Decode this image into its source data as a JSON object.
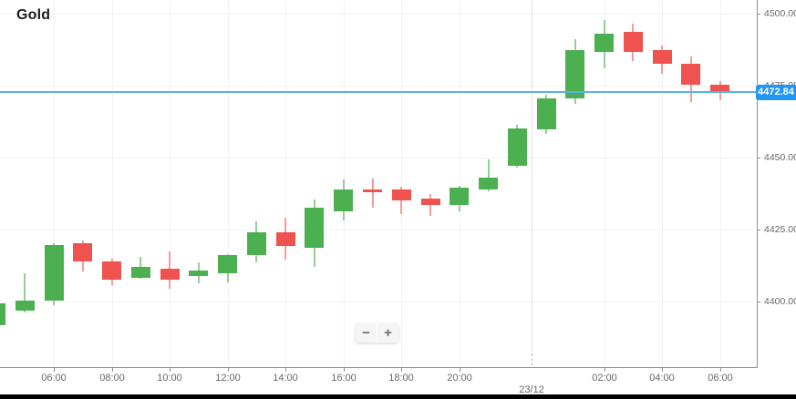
{
  "title": "Gold",
  "current_price": {
    "value": 4472.84,
    "label": "4472.84"
  },
  "zoom_controls": {
    "zoom_out_label": "−",
    "zoom_in_label": "+"
  },
  "colors": {
    "up_body": "#4caf50",
    "up_wick": "#93ce96",
    "down_body": "#ef5350",
    "down_wick": "#f59c9a",
    "current_price_line": "#55b1f1",
    "current_price_label_bg": "#2196f3",
    "grid": "#f2f2f2",
    "date_separator": "#e0e0e0",
    "axis_line": "#8f8f8f",
    "axis_text": "#676767",
    "background": "#ffffff"
  },
  "chart_data": {
    "type": "candlestick",
    "title": "Gold",
    "interval": "1h",
    "grid": true,
    "y_axis_side": "right",
    "y_range": [
      4377,
      4505
    ],
    "y_ticks": [
      {
        "value": 4500,
        "label": "4500.00"
      },
      {
        "value": 4475,
        "label": "4475.00"
      },
      {
        "value": 4450,
        "label": "4450.00"
      },
      {
        "value": 4425,
        "label": "4425.00"
      },
      {
        "value": 4400,
        "label": "4400.00"
      }
    ],
    "x_ticks": [
      {
        "candle_index": 2,
        "label": "06:00"
      },
      {
        "candle_index": 4,
        "label": "08:00"
      },
      {
        "candle_index": 6,
        "label": "10:00"
      },
      {
        "candle_index": 8,
        "label": "12:00"
      },
      {
        "candle_index": 10,
        "label": "14:00"
      },
      {
        "candle_index": 12,
        "label": "16:00"
      },
      {
        "candle_index": 14,
        "label": "18:00"
      },
      {
        "candle_index": 16,
        "label": "20:00"
      },
      {
        "candle_index": 21,
        "label": "02:00"
      },
      {
        "candle_index": 23,
        "label": "04:00"
      },
      {
        "candle_index": 25,
        "label": "06:00"
      }
    ],
    "date_separator": {
      "label": "23/12",
      "position_index": 18.5
    },
    "current_price_line": 4472.84,
    "candles": [
      {
        "time": "04:00",
        "o": 4391.9,
        "h": 4400.0,
        "l": 4391.9,
        "c": 4399.4
      },
      {
        "time": "05:00",
        "o": 4396.9,
        "h": 4409.9,
        "l": 4396.3,
        "c": 4400.4
      },
      {
        "time": "06:00",
        "o": 4400.3,
        "h": 4420.2,
        "l": 4398.7,
        "c": 4419.6
      },
      {
        "time": "07:00",
        "o": 4420.3,
        "h": 4421.2,
        "l": 4410.5,
        "c": 4413.9
      },
      {
        "time": "08:00",
        "o": 4413.9,
        "h": 4414.9,
        "l": 4405.7,
        "c": 4407.6
      },
      {
        "time": "09:00",
        "o": 4408.2,
        "h": 4415.5,
        "l": 4407.9,
        "c": 4412.0
      },
      {
        "time": "10:00",
        "o": 4411.4,
        "h": 4417.4,
        "l": 4404.5,
        "c": 4407.7
      },
      {
        "time": "11:00",
        "o": 4408.8,
        "h": 4413.5,
        "l": 4406.1,
        "c": 4410.7
      },
      {
        "time": "12:00",
        "o": 4409.8,
        "h": 4416.4,
        "l": 4406.6,
        "c": 4416.1
      },
      {
        "time": "13:00",
        "o": 4416.1,
        "h": 4427.8,
        "l": 4413.6,
        "c": 4424.0
      },
      {
        "time": "14:00",
        "o": 4424.0,
        "h": 4429.0,
        "l": 4414.5,
        "c": 4419.3
      },
      {
        "time": "15:00",
        "o": 4418.7,
        "h": 4435.4,
        "l": 4412.0,
        "c": 4432.6
      },
      {
        "time": "16:00",
        "o": 4431.4,
        "h": 4442.4,
        "l": 4428.2,
        "c": 4439.0
      },
      {
        "time": "17:00",
        "o": 4438.9,
        "h": 4442.7,
        "l": 4432.6,
        "c": 4438.0
      },
      {
        "time": "18:00",
        "o": 4439.0,
        "h": 4439.9,
        "l": 4430.4,
        "c": 4435.1
      },
      {
        "time": "19:00",
        "o": 4435.7,
        "h": 4437.2,
        "l": 4429.5,
        "c": 4433.6
      },
      {
        "time": "20:00",
        "o": 4433.5,
        "h": 4440.2,
        "l": 4431.3,
        "c": 4439.6
      },
      {
        "time": "21:00",
        "o": 4438.9,
        "h": 4449.4,
        "l": 4438.3,
        "c": 4443.1
      },
      {
        "time": "22:00",
        "o": 4447.2,
        "h": 4461.4,
        "l": 4446.5,
        "c": 4460.1
      },
      {
        "time": "00:00",
        "o": 4459.8,
        "h": 4471.8,
        "l": 4458.2,
        "c": 4470.6
      },
      {
        "time": "01:00",
        "o": 4470.6,
        "h": 4491.1,
        "l": 4468.7,
        "c": 4487.3
      },
      {
        "time": "02:00",
        "o": 4486.7,
        "h": 4497.8,
        "l": 4481.0,
        "c": 4493.0
      },
      {
        "time": "03:00",
        "o": 4493.7,
        "h": 4496.6,
        "l": 4483.6,
        "c": 4486.7
      },
      {
        "time": "04:00",
        "o": 4487.3,
        "h": 4488.9,
        "l": 4479.1,
        "c": 4482.6
      },
      {
        "time": "05:00",
        "o": 4482.6,
        "h": 4485.1,
        "l": 4469.4,
        "c": 4475.3
      },
      {
        "time": "06:00",
        "o": 4475.2,
        "h": 4476.5,
        "l": 4469.9,
        "c": 4472.84
      }
    ]
  }
}
